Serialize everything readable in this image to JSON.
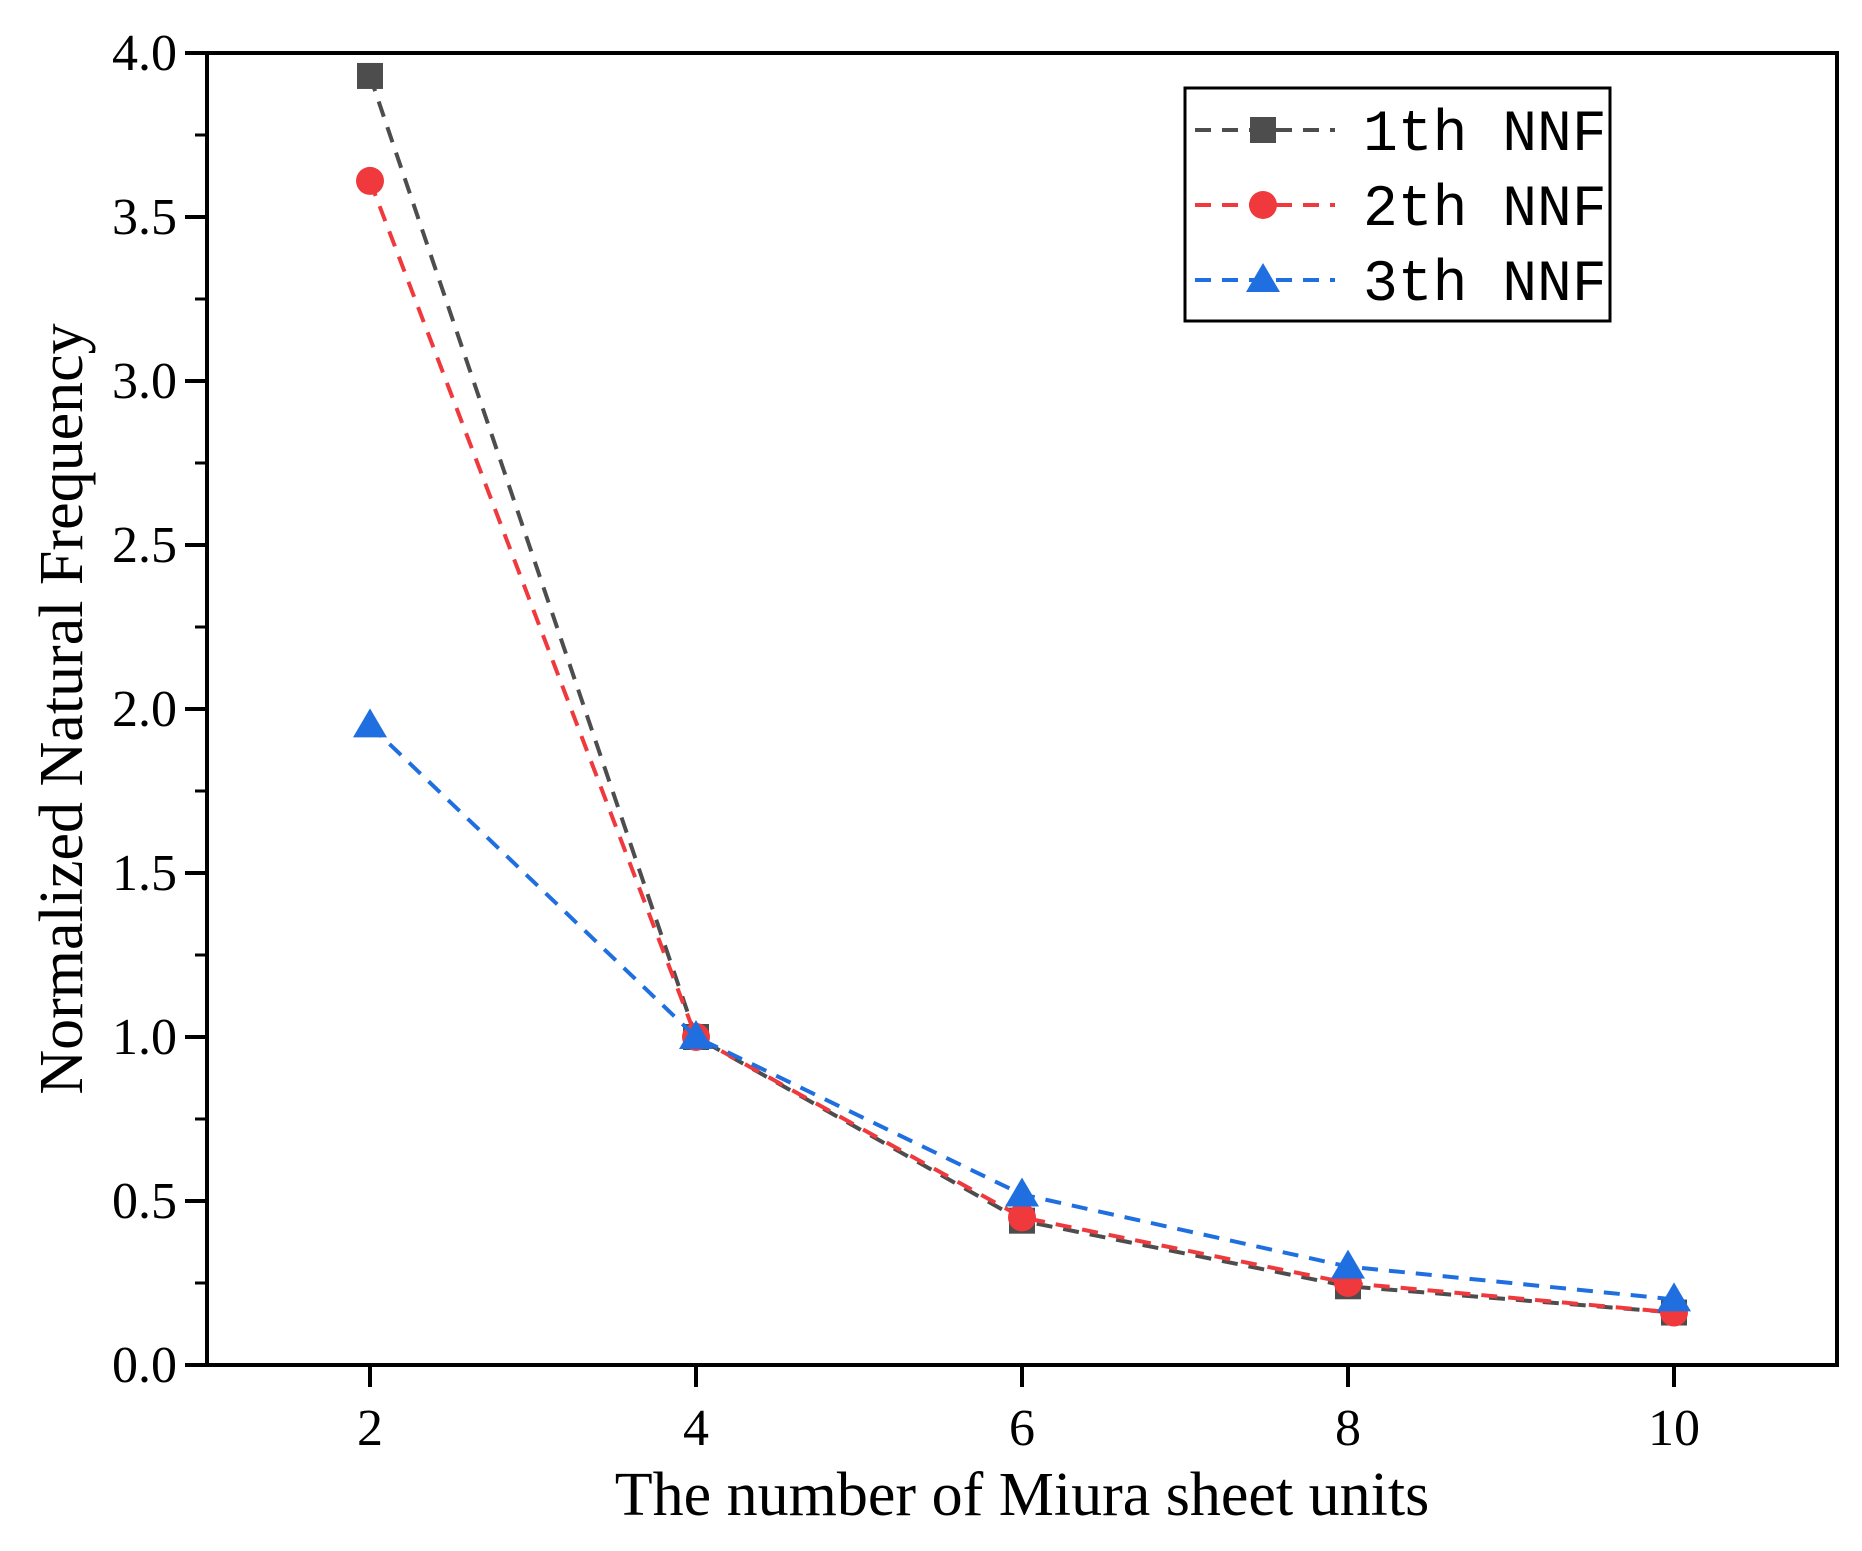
{
  "chart_data": {
    "type": "line",
    "title": "",
    "xlabel": "The number of Miura sheet units",
    "ylabel": "Normalized Natural Frequency",
    "x": [
      2,
      4,
      6,
      8,
      10
    ],
    "xlim": [
      1,
      11
    ],
    "ylim": [
      0,
      4
    ],
    "xticks": [
      2,
      4,
      6,
      8,
      10
    ],
    "xtick_labels": [
      "2",
      "4",
      "6",
      "8",
      "10"
    ],
    "yticks": [
      0,
      0.5,
      1,
      1.5,
      2,
      2.5,
      3,
      3.5,
      4
    ],
    "ytick_labels": [
      "0.0",
      "0.5",
      "1.0",
      "1.5",
      "2.0",
      "2.5",
      "3.0",
      "3.5",
      "4.0"
    ],
    "grid": false,
    "legend_position": "top-right",
    "series": [
      {
        "name": "1th NNF",
        "values": [
          3.93,
          1.0,
          0.44,
          0.24,
          0.16
        ],
        "color": "#4d4d4d",
        "marker": "square",
        "line": "dashed"
      },
      {
        "name": "2th NNF",
        "values": [
          3.61,
          1.0,
          0.45,
          0.25,
          0.16
        ],
        "color": "#f0393c",
        "marker": "circle",
        "line": "dashed"
      },
      {
        "name": "3th NNF",
        "values": [
          1.95,
          1.0,
          0.52,
          0.3,
          0.2
        ],
        "color": "#1f6fe0",
        "marker": "triangle",
        "line": "dashed"
      }
    ]
  }
}
